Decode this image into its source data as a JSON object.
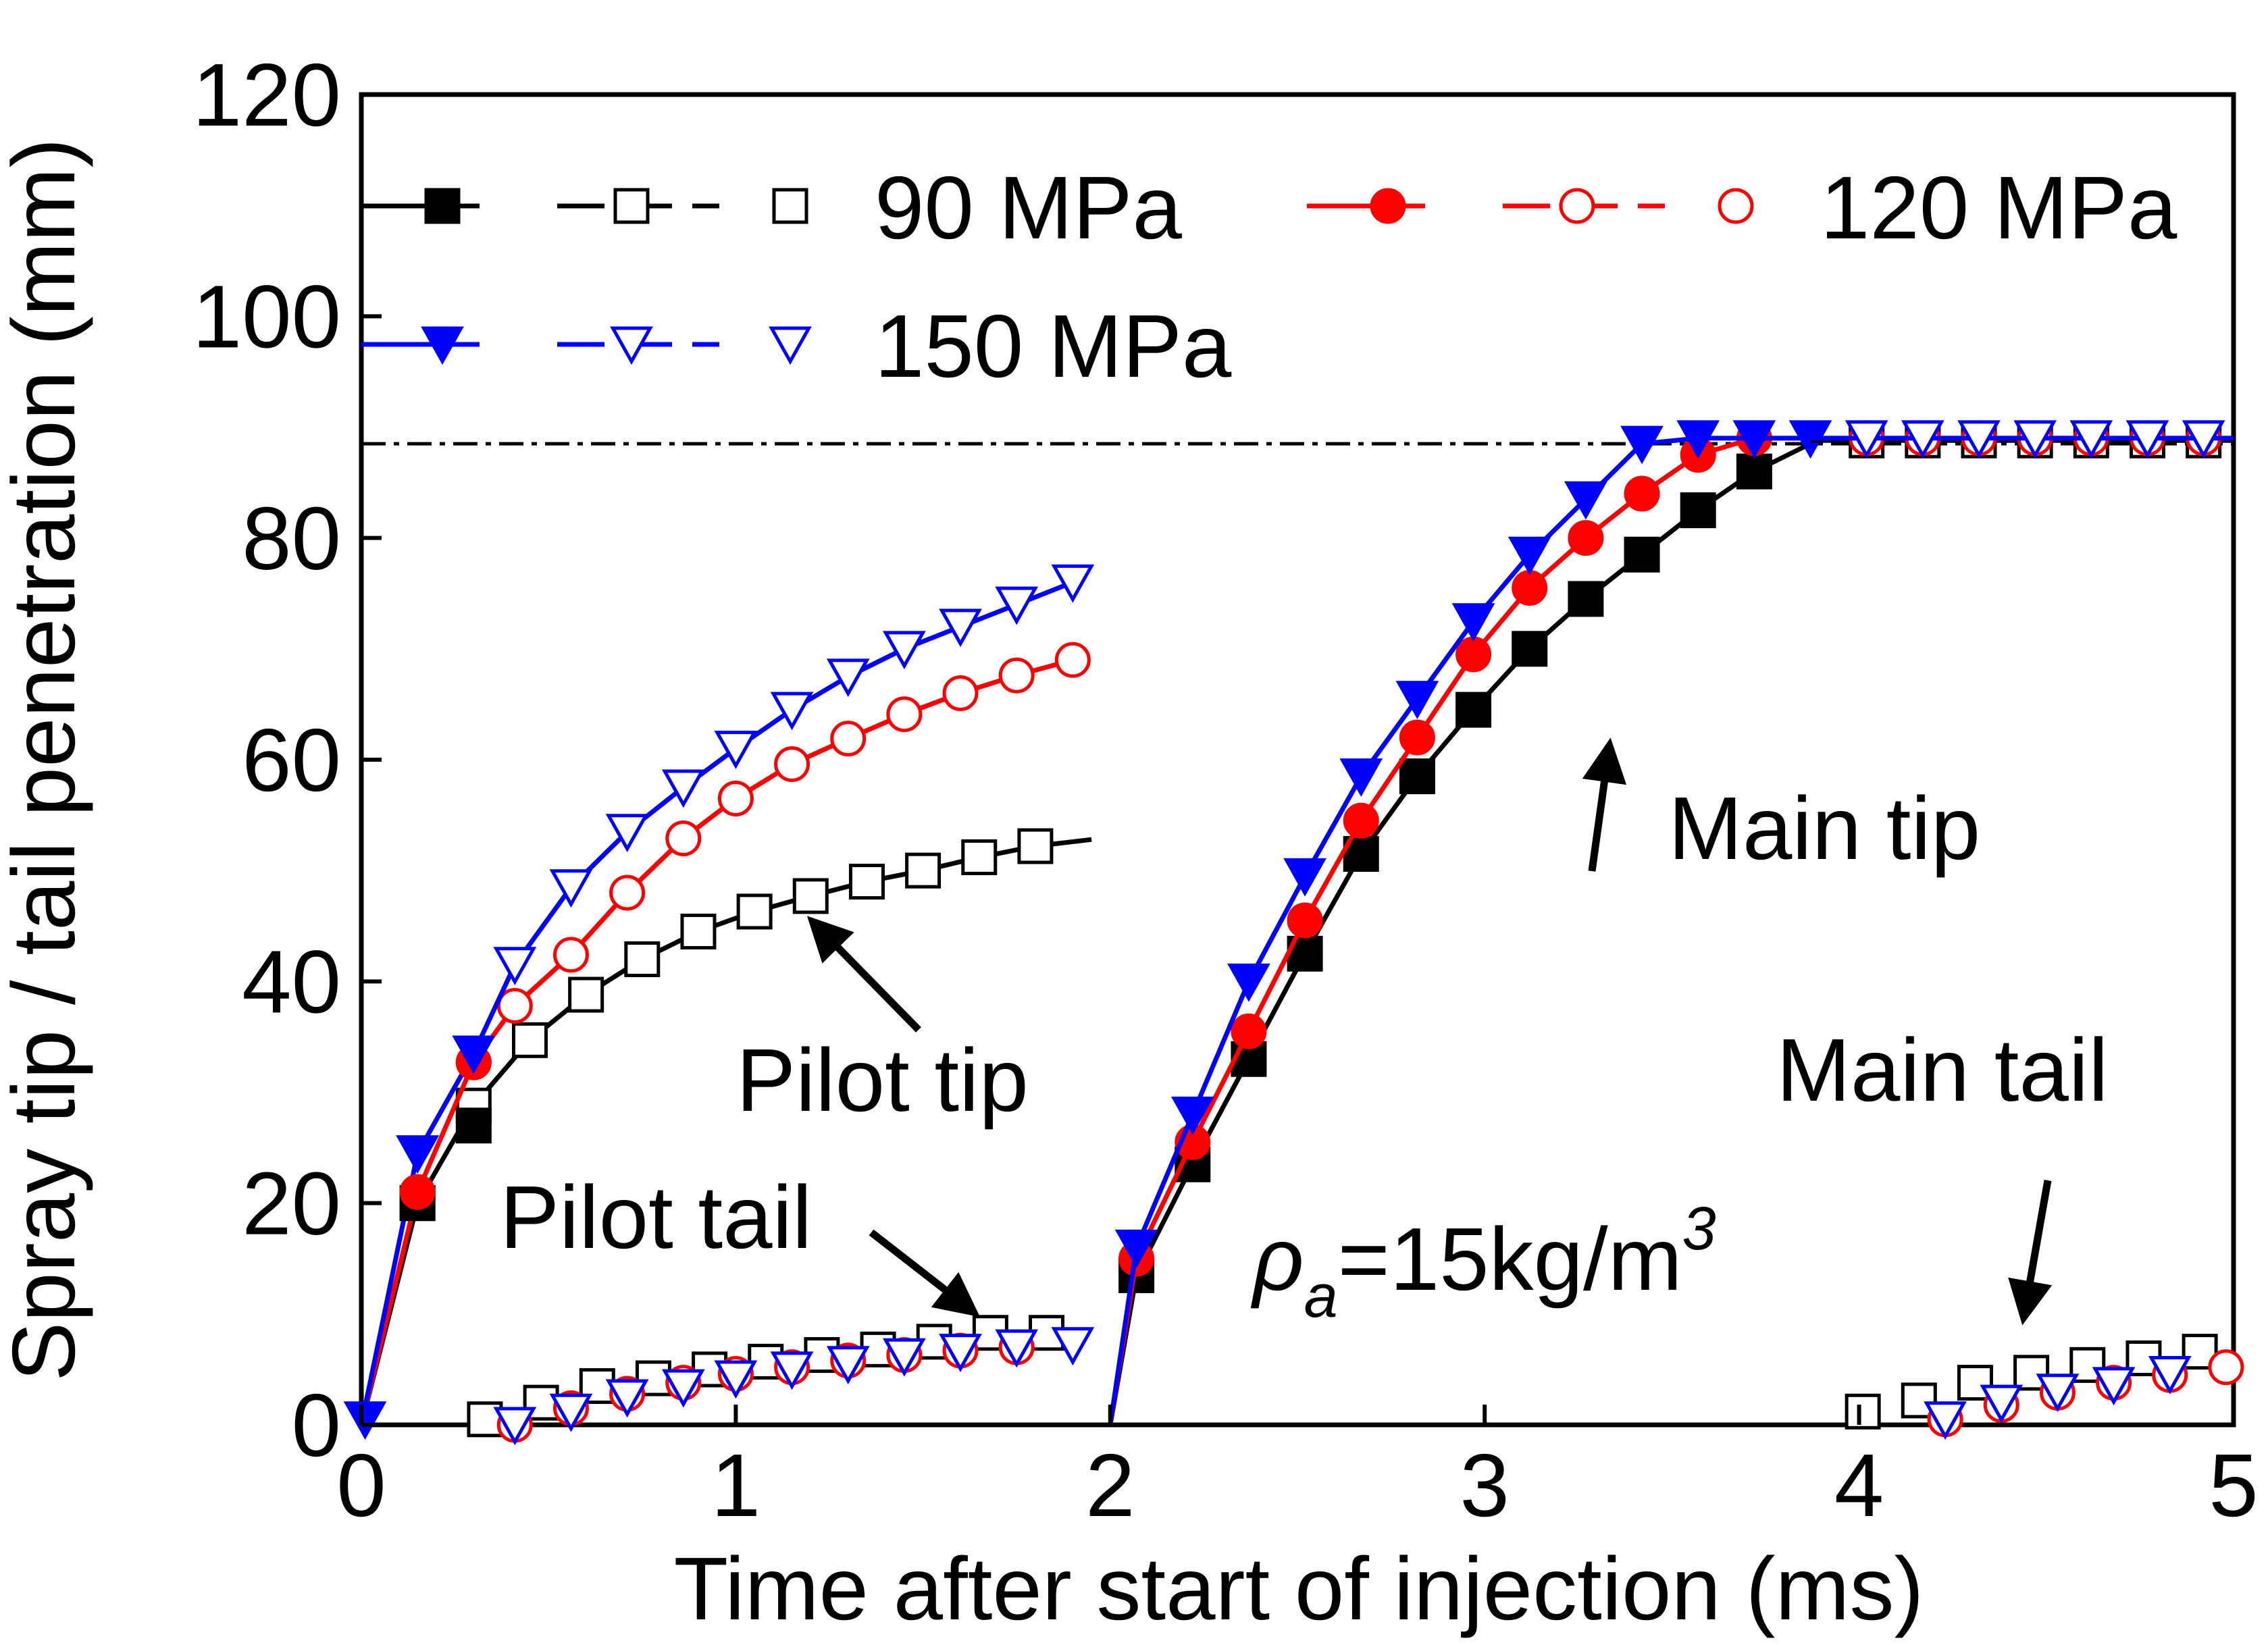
{
  "chart_data": {
    "type": "line",
    "title": "",
    "xlabel": "Time after start of injection (ms)",
    "ylabel": "Spray tip / tail penetration (mm)",
    "xlim": [
      0,
      5
    ],
    "ylim": [
      0,
      120
    ],
    "xticks": [
      0,
      1,
      2,
      3,
      4,
      5
    ],
    "yticks": [
      0,
      20,
      40,
      60,
      80,
      100,
      120
    ],
    "grid": false,
    "reference_line": {
      "y": 88.5,
      "style": "dash-dot"
    },
    "legend": {
      "placement": "top-left",
      "entries": [
        {
          "label": "90 MPa",
          "color": "#000000",
          "filled_marker": "square",
          "open_marker": "square"
        },
        {
          "label": "120 MPa",
          "color": "#ff0000",
          "filled_marker": "circle",
          "open_marker": "circle"
        },
        {
          "label": "150 MPa",
          "color": "#0000ff",
          "filled_marker": "triangle-down",
          "open_marker": "triangle-down"
        }
      ]
    },
    "annotations": [
      {
        "text": "Pilot tip",
        "arrow": true
      },
      {
        "text": "Pilot tail",
        "arrow": true
      },
      {
        "text": "Main tip",
        "arrow": true
      },
      {
        "text": "Main tail",
        "arrow": true
      },
      {
        "text": "ρa=15kg/m3",
        "symbol": "ρ",
        "subscript": "a",
        "body": "=15kg/m",
        "superscript": "3"
      }
    ],
    "series": [
      {
        "name": "90 MPa pilot tip",
        "color": "#000000",
        "marker": "square",
        "filled": false,
        "line": "solid",
        "x": [
          0,
          0.15,
          0.3,
          0.45,
          0.6,
          0.75,
          0.9,
          1.05,
          1.2,
          1.35,
          1.5,
          1.65,
          1.8,
          1.95
        ],
        "y": [
          0,
          20,
          28.8,
          34.7,
          38.8,
          42,
          44.5,
          46.3,
          47.7,
          49,
          50,
          51.2,
          52.2,
          52.8
        ],
        "marker_x": [
          0.15,
          0.3,
          0.45,
          0.6,
          0.75,
          0.9,
          1.05,
          1.2,
          1.35,
          1.5,
          1.65,
          1.8
        ]
      },
      {
        "name": "120 MPa pilot tip",
        "color": "#ff0000",
        "marker": "circle",
        "filled": false,
        "line": "solid",
        "x": [
          0,
          0.15,
          0.3,
          0.41,
          0.56,
          0.71,
          0.86,
          1.0,
          1.15,
          1.3,
          1.45,
          1.6,
          1.75,
          1.9
        ],
        "y": [
          0,
          21,
          32.7,
          37.8,
          42.4,
          48,
          52.9,
          56.5,
          59.6,
          61.9,
          64.1,
          66,
          67.6,
          69
        ],
        "marker_x": [
          0.15,
          0.3,
          0.41,
          0.56,
          0.71,
          0.86,
          1.0,
          1.15,
          1.3,
          1.45,
          1.6,
          1.75,
          1.9
        ]
      },
      {
        "name": "150 MPa pilot tip",
        "color": "#0000ff",
        "marker": "triangle-down",
        "filled": false,
        "line": "solid",
        "x": [
          0,
          0.15,
          0.3,
          0.41,
          0.56,
          0.71,
          0.86,
          1.0,
          1.15,
          1.3,
          1.45,
          1.6,
          1.75,
          1.9
        ],
        "y": [
          0,
          24.5,
          33.5,
          41.5,
          48.5,
          53.5,
          57.5,
          61,
          64.5,
          67.5,
          70,
          72,
          74,
          76
        ],
        "marker_x": [
          0.15,
          0.3,
          0.41,
          0.56,
          0.71,
          0.86,
          1.0,
          1.15,
          1.3,
          1.45,
          1.6,
          1.75,
          1.9
        ]
      },
      {
        "name": "90 MPa pilot tip filled start",
        "color": "#000000",
        "marker": "square",
        "filled": true,
        "line": "none",
        "x": [
          0.15,
          0.3
        ],
        "y": [
          20,
          27
        ],
        "marker_x": [
          0.15,
          0.3
        ]
      },
      {
        "name": "120 MPa pilot tip filled start",
        "color": "#ff0000",
        "marker": "circle",
        "filled": true,
        "line": "none",
        "x": [
          0.15,
          0.3
        ],
        "y": [
          21,
          32.7
        ],
        "marker_x": [
          0.15,
          0.3
        ]
      },
      {
        "name": "150 MPa pilot tip filled start",
        "color": "#0000ff",
        "marker": "triangle-down",
        "filled": true,
        "line": "none",
        "x": [
          0.01,
          0.15,
          0.3
        ],
        "y": [
          0.5,
          24.5,
          33.5
        ],
        "marker_x": [
          0.01,
          0.15,
          0.3
        ]
      },
      {
        "name": "90 MPa pilot tail",
        "color": "#000000",
        "marker": "square",
        "filled": false,
        "line": "none",
        "x": [
          0.33,
          0.48,
          0.63,
          0.78,
          0.93,
          1.08,
          1.23,
          1.38,
          1.53,
          1.68,
          1.83
        ],
        "y": [
          0.5,
          2,
          3.5,
          4.2,
          5,
          5.7,
          6.3,
          6.8,
          7.5,
          8.3,
          8.3
        ],
        "marker_x": [
          0.33,
          0.48,
          0.63,
          0.78,
          0.93,
          1.08,
          1.23,
          1.38,
          1.53,
          1.68,
          1.83
        ]
      },
      {
        "name": "120 MPa pilot tail",
        "color": "#ff0000",
        "marker": "circle",
        "filled": false,
        "line": "none",
        "x": [
          0.41,
          0.56,
          0.71,
          0.86,
          1.0,
          1.15,
          1.3,
          1.45,
          1.6,
          1.75
        ],
        "y": [
          0,
          1.5,
          2.8,
          3.8,
          4.6,
          5.2,
          5.8,
          6.3,
          6.7,
          7
        ],
        "marker_x": [
          0.41,
          0.56,
          0.71,
          0.86,
          1.0,
          1.15,
          1.3,
          1.45,
          1.6,
          1.75
        ]
      },
      {
        "name": "150 MPa pilot tail",
        "color": "#0000ff",
        "marker": "triangle-down",
        "filled": false,
        "line": "none",
        "x": [
          0.41,
          0.56,
          0.71,
          0.86,
          1.0,
          1.15,
          1.3,
          1.45,
          1.6,
          1.75,
          1.9
        ],
        "y": [
          0,
          1.2,
          2.5,
          3.4,
          4.2,
          5,
          5.5,
          6.2,
          6.6,
          7,
          7.2
        ],
        "marker_x": [
          0.41,
          0.56,
          0.71,
          0.86,
          1.0,
          1.15,
          1.3,
          1.45,
          1.6,
          1.75,
          1.9
        ]
      },
      {
        "name": "90 MPa main tip",
        "color": "#000000",
        "marker": "square",
        "filled": true,
        "line": "solid",
        "x": [
          2.0,
          2.07,
          2.22,
          2.37,
          2.52,
          2.67,
          2.82,
          2.97,
          3.12,
          3.27,
          3.42,
          3.57,
          3.72,
          3.87
        ],
        "y": [
          0,
          13.5,
          23.5,
          33,
          42.5,
          51.5,
          58.5,
          64.5,
          70,
          74.5,
          78.5,
          82.5,
          86,
          88.5
        ],
        "marker_x": [
          2.07,
          2.22,
          2.37,
          2.52,
          2.67,
          2.82,
          2.97,
          3.12,
          3.27,
          3.42,
          3.57,
          3.72
        ]
      },
      {
        "name": "120 MPa main tip",
        "color": "#ff0000",
        "marker": "circle",
        "filled": true,
        "line": "solid",
        "x": [
          2.0,
          2.07,
          2.22,
          2.37,
          2.52,
          2.67,
          2.82,
          2.97,
          3.12,
          3.27,
          3.42,
          3.57,
          3.72,
          3.87
        ],
        "y": [
          0,
          15,
          25.5,
          35.5,
          45.5,
          54.5,
          62,
          69.5,
          75.5,
          80,
          84,
          87.5,
          89,
          89
        ],
        "marker_x": [
          2.07,
          2.22,
          2.37,
          2.52,
          2.67,
          2.82,
          2.97,
          3.12,
          3.27,
          3.42,
          3.57,
          3.72
        ]
      },
      {
        "name": "150 MPa main tip",
        "color": "#0000ff",
        "marker": "triangle-down",
        "filled": true,
        "line": "solid",
        "x": [
          2.0,
          2.07,
          2.22,
          2.37,
          2.52,
          2.67,
          2.82,
          2.97,
          3.12,
          3.27,
          3.42,
          3.57,
          3.72,
          3.87
        ],
        "y": [
          0,
          16,
          28,
          40,
          49.5,
          58.5,
          65.5,
          72.5,
          78.5,
          83.5,
          88.5,
          89,
          89,
          89
        ],
        "marker_x": [
          2.07,
          2.22,
          2.37,
          2.52,
          2.67,
          2.82,
          2.97,
          3.12,
          3.27,
          3.42,
          3.57,
          3.72,
          3.87
        ]
      },
      {
        "name": "90 MPa main tip plateau",
        "color": "#000000",
        "marker": "square",
        "filled": false,
        "line": "solid",
        "x": [
          3.87,
          4.02,
          4.17,
          4.32,
          4.47,
          4.62,
          4.77,
          4.92,
          5.0
        ],
        "y": [
          88.8,
          88.8,
          88.8,
          88.8,
          88.8,
          88.8,
          88.8,
          88.8,
          88.8
        ],
        "marker_x": [
          4.02,
          4.17,
          4.32,
          4.47,
          4.62,
          4.77,
          4.92
        ]
      },
      {
        "name": "120 MPa main tip plateau",
        "color": "#ff0000",
        "marker": "circle",
        "filled": false,
        "line": "solid",
        "x": [
          3.87,
          4.02,
          4.17,
          4.32,
          4.47,
          4.62,
          4.77,
          4.92,
          5.0
        ],
        "y": [
          89,
          89,
          89,
          89,
          89,
          89,
          89,
          89,
          89
        ],
        "marker_x": [
          4.02,
          4.17,
          4.32,
          4.47,
          4.62,
          4.77,
          4.92
        ]
      },
      {
        "name": "150 MPa main tip plateau",
        "color": "#0000ff",
        "marker": "triangle-down",
        "filled": false,
        "line": "solid",
        "x": [
          3.87,
          4.02,
          4.17,
          4.32,
          4.47,
          4.62,
          4.77,
          4.92,
          5.0
        ],
        "y": [
          89,
          89,
          89,
          89,
          89,
          89,
          89,
          89,
          89
        ],
        "marker_x": [
          4.02,
          4.17,
          4.32,
          4.47,
          4.62,
          4.77,
          4.92
        ]
      },
      {
        "name": "90 MPa main tail",
        "color": "#000000",
        "marker": "square",
        "filled": false,
        "line": "none",
        "x": [
          4.01,
          4.16,
          4.31,
          4.46,
          4.61,
          4.76,
          4.91
        ],
        "y": [
          1.2,
          2.2,
          3.8,
          4.7,
          5.4,
          6.0,
          6.6
        ],
        "marker_x": [
          4.01,
          4.16,
          4.31,
          4.46,
          4.61,
          4.76,
          4.91
        ]
      },
      {
        "name": "120 MPa main tail",
        "color": "#ff0000",
        "marker": "circle",
        "filled": false,
        "line": "none",
        "x": [
          4.23,
          4.38,
          4.53,
          4.68,
          4.83,
          4.98
        ],
        "y": [
          0.5,
          1.8,
          2.9,
          3.8,
          4.5,
          5.2
        ],
        "marker_x": [
          4.23,
          4.38,
          4.53,
          4.68,
          4.83,
          4.98
        ]
      },
      {
        "name": "150 MPa main tail",
        "color": "#0000ff",
        "marker": "triangle-down",
        "filled": false,
        "line": "none",
        "x": [
          4.23,
          4.38,
          4.53,
          4.68,
          4.83
        ],
        "y": [
          0.5,
          2,
          3,
          3.6,
          4.6
        ],
        "marker_x": [
          4.23,
          4.38,
          4.53,
          4.68,
          4.83
        ]
      }
    ]
  }
}
